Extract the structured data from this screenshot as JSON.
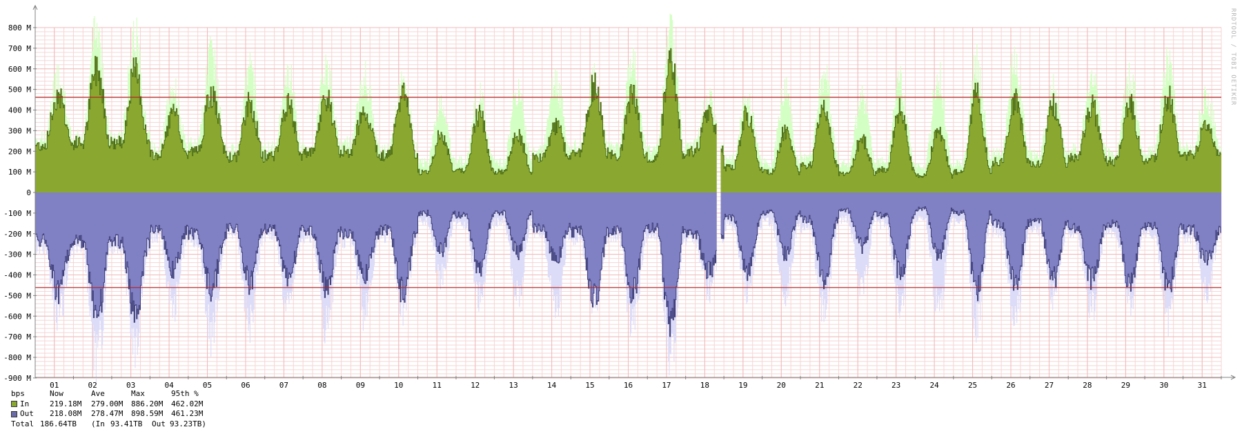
{
  "watermark": "RRDTOOL / TOBI OETIKER",
  "colors": {
    "in_fill": "#8AA830",
    "in_line": "#4a6b12",
    "in_max": "#d4ffc4",
    "out_fill": "#8080c4",
    "out_line": "#3c3c78",
    "out_max": "#dcdcf8",
    "percentile": "#b22222",
    "grid_minor": "#f6d5d5",
    "grid_major": "#f0b8b8",
    "axis": "#808080"
  },
  "legend": {
    "header": {
      "unit": "bps",
      "now": "Now",
      "ave": "Ave",
      "max": "Max",
      "p95": "95th %"
    },
    "rows": [
      {
        "label": "In",
        "now": "219.18M",
        "ave": "279.00M",
        "max": "886.20M",
        "p95": "462.02M",
        "color": "#8AA830"
      },
      {
        "label": "Out",
        "now": "218.08M",
        "ave": "278.47M",
        "max": "898.59M",
        "p95": "461.23M",
        "color": "#6b6ba8"
      }
    ],
    "total": {
      "label": "Total",
      "value": "186.64TB",
      "in_label": "(In",
      "in_value": "93.41TB",
      "out_label": "Out",
      "out_value": "93.23TB)"
    }
  },
  "chart_data": {
    "type": "area",
    "ylabel": "bps",
    "ylim": [
      -900,
      800
    ],
    "yunit": "M",
    "y_ticks": [
      {
        "value": 800,
        "label": "800 M"
      },
      {
        "value": 700,
        "label": "700 M"
      },
      {
        "value": 600,
        "label": "600 M"
      },
      {
        "value": 500,
        "label": "500 M"
      },
      {
        "value": 400,
        "label": "400 M"
      },
      {
        "value": 300,
        "label": "300 M"
      },
      {
        "value": 200,
        "label": "200 M"
      },
      {
        "value": 100,
        "label": "100 M"
      },
      {
        "value": 0,
        "label": "0"
      },
      {
        "value": -100,
        "label": "-100 M"
      },
      {
        "value": -200,
        "label": "-200 M"
      },
      {
        "value": -300,
        "label": "-300 M"
      },
      {
        "value": -400,
        "label": "-400 M"
      },
      {
        "value": -500,
        "label": "-500 M"
      },
      {
        "value": -600,
        "label": "-600 M"
      },
      {
        "value": -700,
        "label": "-700 M"
      },
      {
        "value": -800,
        "label": "-800 M"
      },
      {
        "value": -900,
        "label": "-900 M"
      }
    ],
    "x_ticks": [
      "01",
      "02",
      "03",
      "04",
      "05",
      "06",
      "07",
      "08",
      "09",
      "10",
      "11",
      "12",
      "13",
      "14",
      "15",
      "16",
      "17",
      "18",
      "19",
      "20",
      "21",
      "22",
      "23",
      "24",
      "25",
      "26",
      "27",
      "28",
      "29",
      "30",
      "31"
    ],
    "x_range_days": [
      0.5,
      31.5
    ],
    "gap": [
      18.3,
      18.4
    ],
    "percentile_95": {
      "in": 462.02,
      "out": -461.23
    },
    "daily_peaks": {
      "days": [
        1,
        2,
        3,
        4,
        5,
        6,
        7,
        8,
        9,
        10,
        11,
        12,
        13,
        14,
        15,
        16,
        17,
        18,
        19,
        20,
        21,
        22,
        23,
        24,
        25,
        26,
        27,
        28,
        29,
        30,
        31
      ],
      "in_avg_peak": [
        480,
        600,
        580,
        380,
        470,
        430,
        420,
        460,
        400,
        480,
        280,
        380,
        290,
        320,
        520,
        480,
        630,
        380,
        380,
        300,
        420,
        260,
        400,
        300,
        470,
        440,
        420,
        420,
        430,
        460,
        320
      ],
      "in_avg_base": [
        230,
        240,
        240,
        180,
        200,
        170,
        180,
        190,
        200,
        180,
        100,
        110,
        100,
        170,
        190,
        180,
        170,
        200,
        120,
        100,
        130,
        90,
        110,
        80,
        100,
        150,
        140,
        170,
        150,
        160,
        180
      ],
      "in_max_peak": [
        620,
        880,
        830,
        560,
        760,
        660,
        650,
        680,
        620,
        600,
        450,
        520,
        550,
        590,
        600,
        730,
        840,
        500,
        520,
        550,
        650,
        520,
        600,
        620,
        700,
        700,
        560,
        620,
        620,
        690,
        520
      ],
      "out_avg_peak": [
        -490,
        -600,
        -580,
        -380,
        -470,
        -440,
        -420,
        -460,
        -400,
        -480,
        -280,
        -380,
        -290,
        -320,
        -520,
        -480,
        -630,
        -380,
        -380,
        -300,
        -420,
        -260,
        -400,
        -300,
        -470,
        -440,
        -420,
        -420,
        -430,
        -460,
        -320
      ],
      "out_avg_base": [
        -230,
        -240,
        -240,
        -180,
        -200,
        -170,
        -180,
        -190,
        -200,
        -180,
        -100,
        -110,
        -100,
        -170,
        -190,
        -180,
        -170,
        -200,
        -120,
        -100,
        -130,
        -90,
        -110,
        -80,
        -100,
        -150,
        -140,
        -170,
        -150,
        -160,
        -180
      ],
      "out_max_peak": [
        -680,
        -900,
        -830,
        -620,
        -770,
        -700,
        -600,
        -720,
        -650,
        -620,
        -460,
        -560,
        -560,
        -600,
        -620,
        -700,
        -860,
        -520,
        -520,
        -540,
        -640,
        -520,
        -600,
        -640,
        -700,
        -690,
        -560,
        -620,
        -620,
        -700,
        -520
      ]
    },
    "grid": true
  }
}
